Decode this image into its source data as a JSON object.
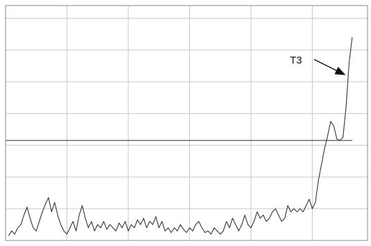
{
  "chart_data": {
    "type": "line",
    "annotation": "T3",
    "xlim": [
      0,
      118
    ],
    "ylim": [
      0,
      74
    ],
    "xticks": [
      20,
      40,
      60,
      80,
      100
    ],
    "yticks": [
      10,
      20,
      30,
      40,
      50,
      60,
      70
    ],
    "grid": true,
    "threshold": 31.5,
    "threshold_color": "#555555",
    "x": [
      1,
      2,
      3,
      4,
      5,
      6,
      7,
      8,
      9,
      10,
      11,
      12,
      13,
      14,
      15,
      16,
      17,
      18,
      19,
      20,
      21,
      22,
      23,
      24,
      25,
      26,
      27,
      28,
      29,
      30,
      31,
      32,
      33,
      34,
      35,
      36,
      37,
      38,
      39,
      40,
      41,
      42,
      43,
      44,
      45,
      46,
      47,
      48,
      49,
      50,
      51,
      52,
      53,
      54,
      55,
      56,
      57,
      58,
      59,
      60,
      61,
      62,
      63,
      64,
      65,
      66,
      67,
      68,
      69,
      70,
      71,
      72,
      73,
      74,
      75,
      76,
      77,
      78,
      79,
      80,
      81,
      82,
      83,
      84,
      85,
      86,
      87,
      88,
      89,
      90,
      91,
      92,
      93,
      94,
      95,
      96,
      97,
      98,
      99,
      100,
      101,
      102,
      103,
      104,
      105,
      106,
      107,
      108,
      109,
      110,
      111,
      112,
      113
    ],
    "series": [
      {
        "color": "#333333",
        "values": [
          1.5,
          3,
          2,
          4,
          5,
          8,
          10.5,
          7,
          4,
          3,
          6,
          9,
          11.5,
          13.5,
          9,
          12,
          8,
          5,
          3,
          2,
          4,
          6,
          3,
          8,
          11,
          7,
          4,
          6,
          3,
          5,
          4,
          6,
          3.5,
          5,
          4,
          3,
          5.5,
          4,
          6,
          3,
          5,
          4,
          6.5,
          5,
          7,
          4,
          6,
          5,
          7.5,
          4,
          6,
          3,
          4,
          2.5,
          4,
          3,
          5,
          3.5,
          2.5,
          4,
          3,
          5,
          6,
          4,
          2.5,
          3,
          2,
          4,
          3,
          2,
          3,
          6,
          4,
          7,
          5,
          3,
          5,
          8,
          5,
          4,
          6,
          9,
          7,
          8,
          6,
          7,
          9,
          10,
          8,
          6,
          7,
          11,
          9,
          10,
          9,
          10,
          9,
          11,
          13,
          10,
          12,
          19,
          24,
          29,
          33,
          37.5,
          36,
          32,
          31.5,
          32.5,
          42,
          56,
          64
        ]
      }
    ]
  }
}
